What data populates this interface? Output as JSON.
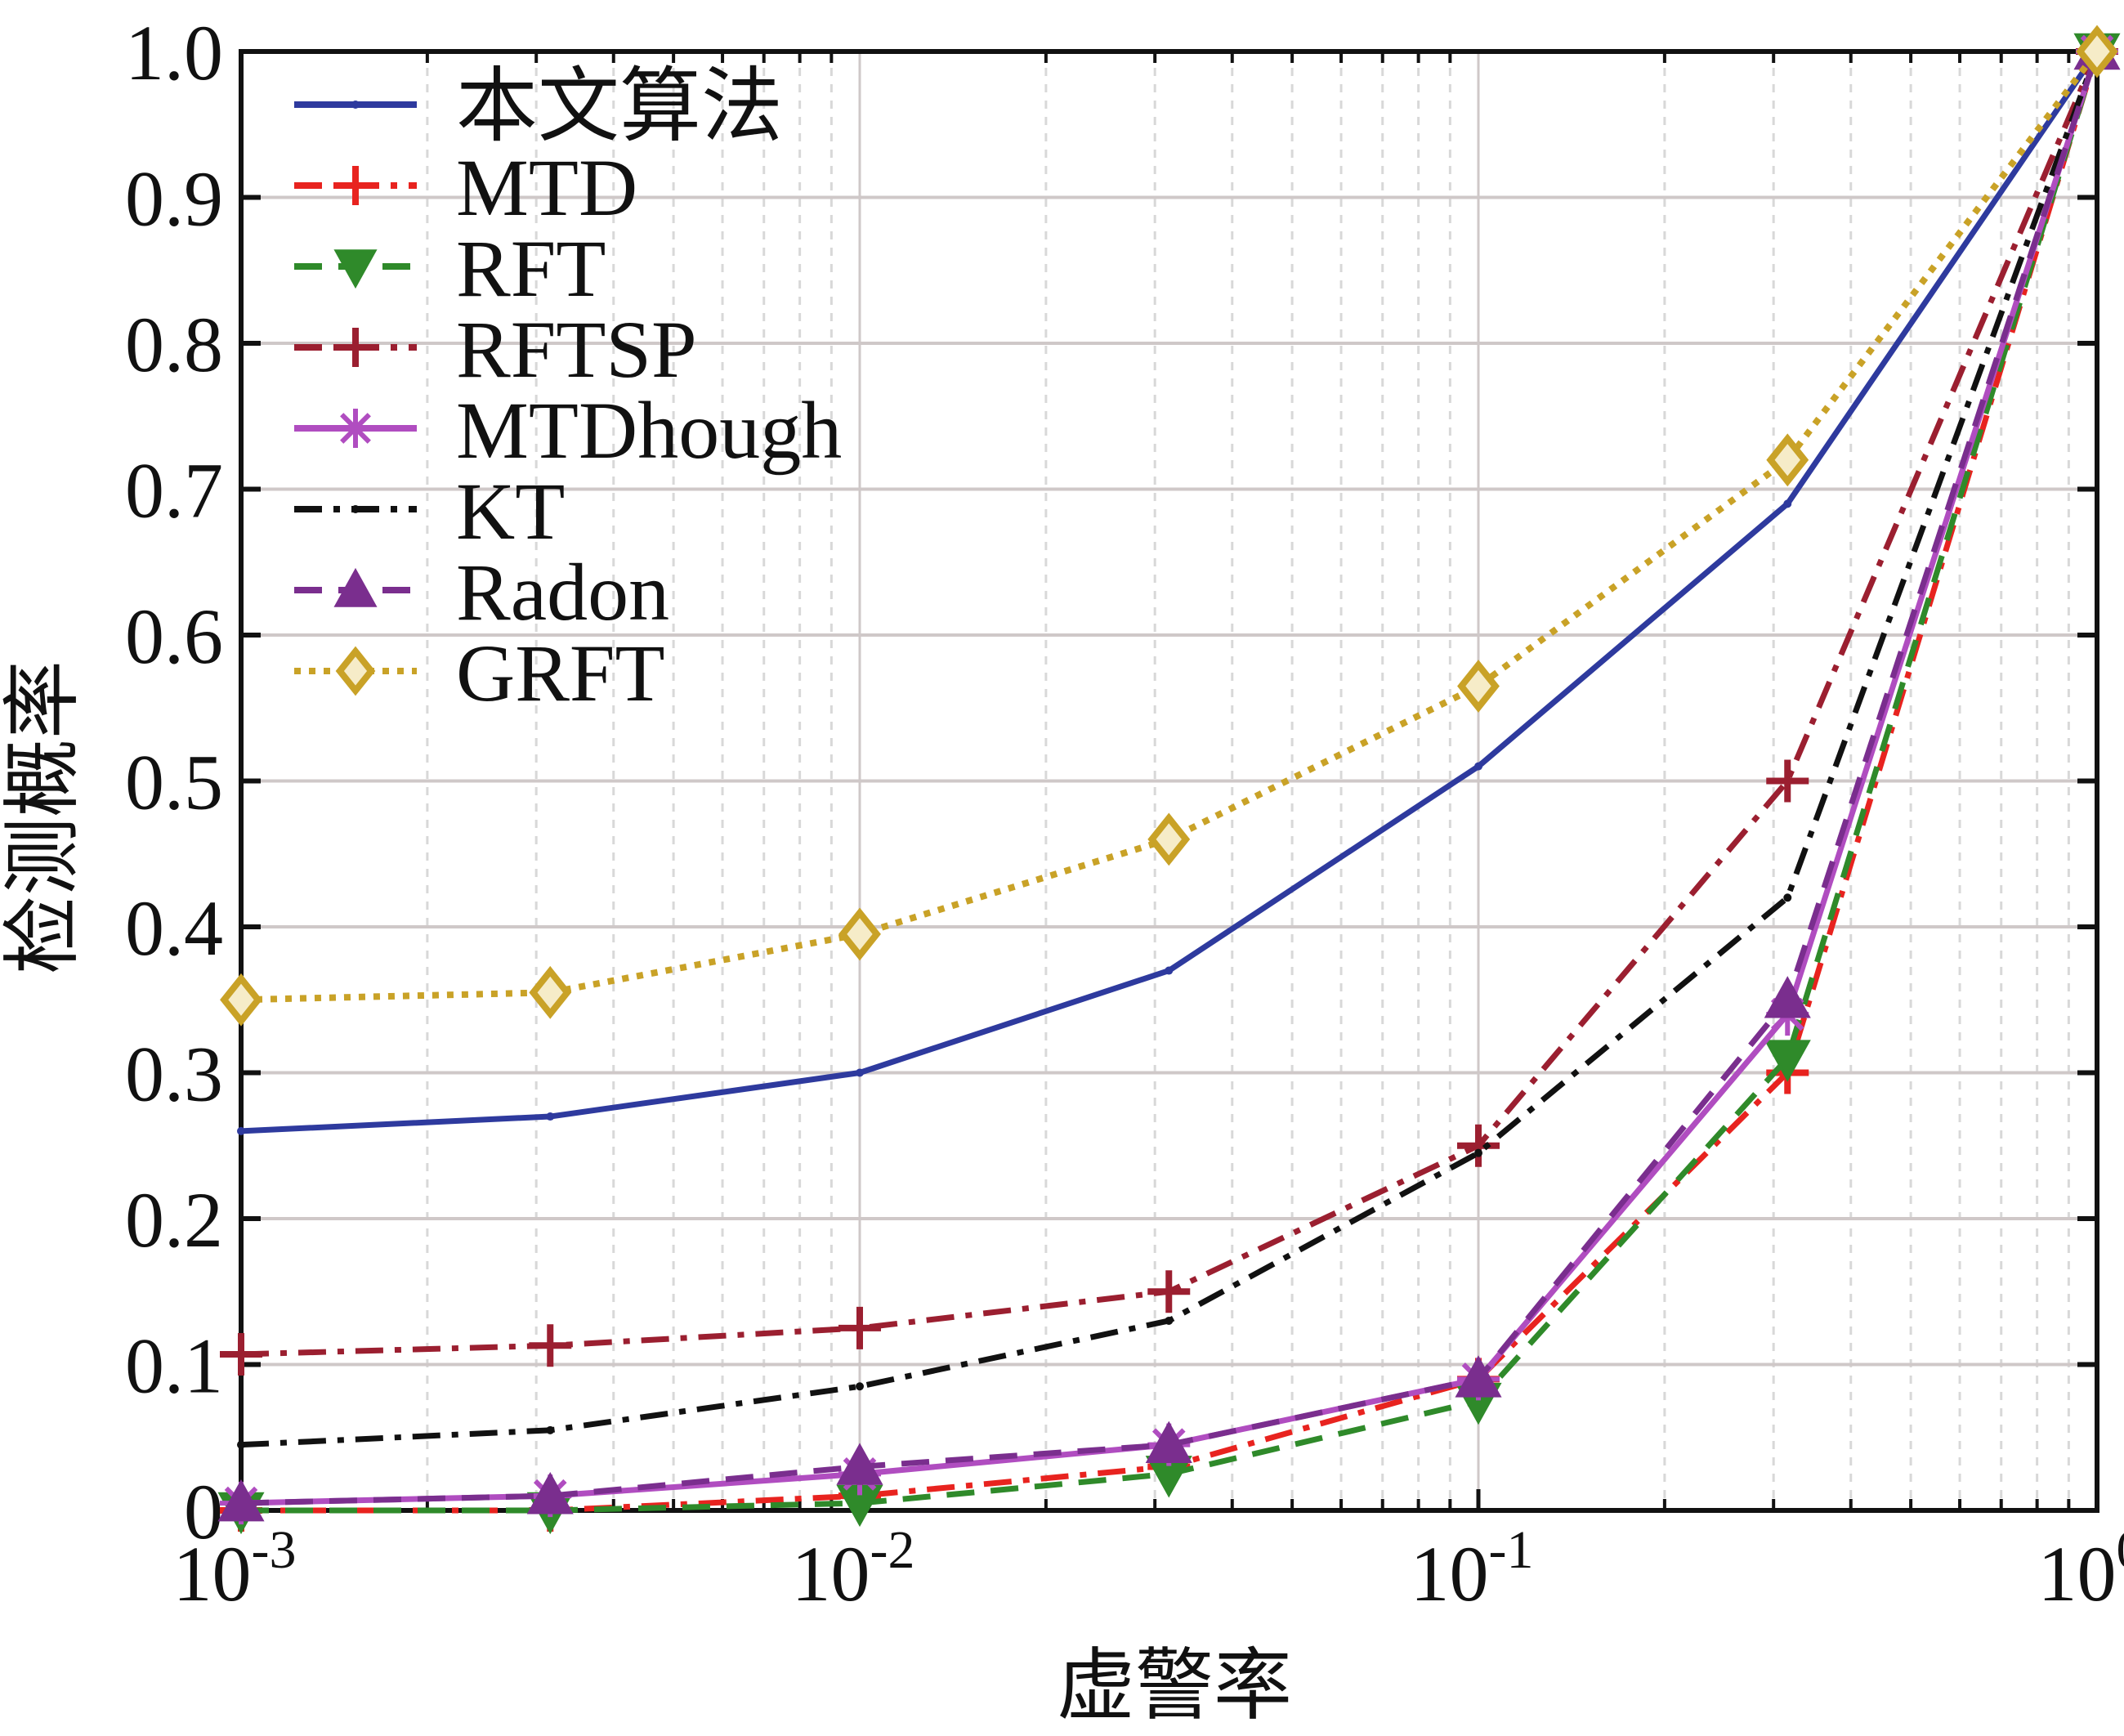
{
  "chart_data": {
    "type": "line",
    "title": "",
    "xlabel": "虚警率",
    "ylabel": "检测概率",
    "xscale": "log",
    "xlim": [
      0.001,
      1
    ],
    "ylim": [
      0,
      1.0
    ],
    "grid": true,
    "legend_position": "top-left",
    "x": [
      0.001,
      0.00316,
      0.01,
      0.0316,
      0.1,
      0.316,
      1
    ],
    "x_ticks": [
      {
        "value": 0.001,
        "base": "10",
        "exp": "-3"
      },
      {
        "value": 0.01,
        "base": "10",
        "exp": "-2"
      },
      {
        "value": 0.1,
        "base": "10",
        "exp": "-1"
      },
      {
        "value": 1,
        "base": "10",
        "exp": "0"
      }
    ],
    "y_ticks": [
      "0",
      "0.1",
      "0.2",
      "0.3",
      "0.4",
      "0.5",
      "0.6",
      "0.7",
      "0.8",
      "0.9",
      "1.0"
    ],
    "series": [
      {
        "name": "本文算法",
        "color": "#2e3a9e",
        "dash": "solid",
        "marker": "point",
        "values": [
          0.26,
          0.27,
          0.3,
          0.37,
          0.51,
          0.69,
          1.0
        ]
      },
      {
        "name": "MTD",
        "color": "#e8231f",
        "dash": "dashdot",
        "marker": "plus",
        "values": [
          0.0,
          0.0,
          0.01,
          0.03,
          0.09,
          0.3,
          1.0
        ]
      },
      {
        "name": "RFT",
        "color": "#2f8a2a",
        "dash": "dashed",
        "marker": "triangle-down",
        "values": [
          0.0,
          0.0,
          0.005,
          0.025,
          0.075,
          0.31,
          1.0
        ]
      },
      {
        "name": "RFTSP",
        "color": "#9b1f30",
        "dash": "dashdot",
        "marker": "plus",
        "values": [
          0.107,
          0.113,
          0.125,
          0.15,
          0.25,
          0.5,
          1.0
        ]
      },
      {
        "name": "MTDhough",
        "color": "#b04dc0",
        "dash": "solid",
        "marker": "star",
        "values": [
          0.005,
          0.01,
          0.025,
          0.045,
          0.09,
          0.34,
          1.0
        ]
      },
      {
        "name": "KT",
        "color": "#111111",
        "dash": "dashdot",
        "marker": "point",
        "values": [
          0.045,
          0.055,
          0.085,
          0.13,
          0.245,
          0.42,
          1.0
        ]
      },
      {
        "name": "Radon",
        "color": "#7a2e8e",
        "dash": "dashed",
        "marker": "triangle-up",
        "values": [
          0.005,
          0.01,
          0.03,
          0.045,
          0.09,
          0.35,
          1.0
        ]
      },
      {
        "name": "GRFT",
        "color": "#c9a227",
        "dash": "dotted",
        "marker": "diamond",
        "values": [
          0.35,
          0.355,
          0.395,
          0.46,
          0.565,
          0.72,
          1.0
        ]
      }
    ]
  }
}
